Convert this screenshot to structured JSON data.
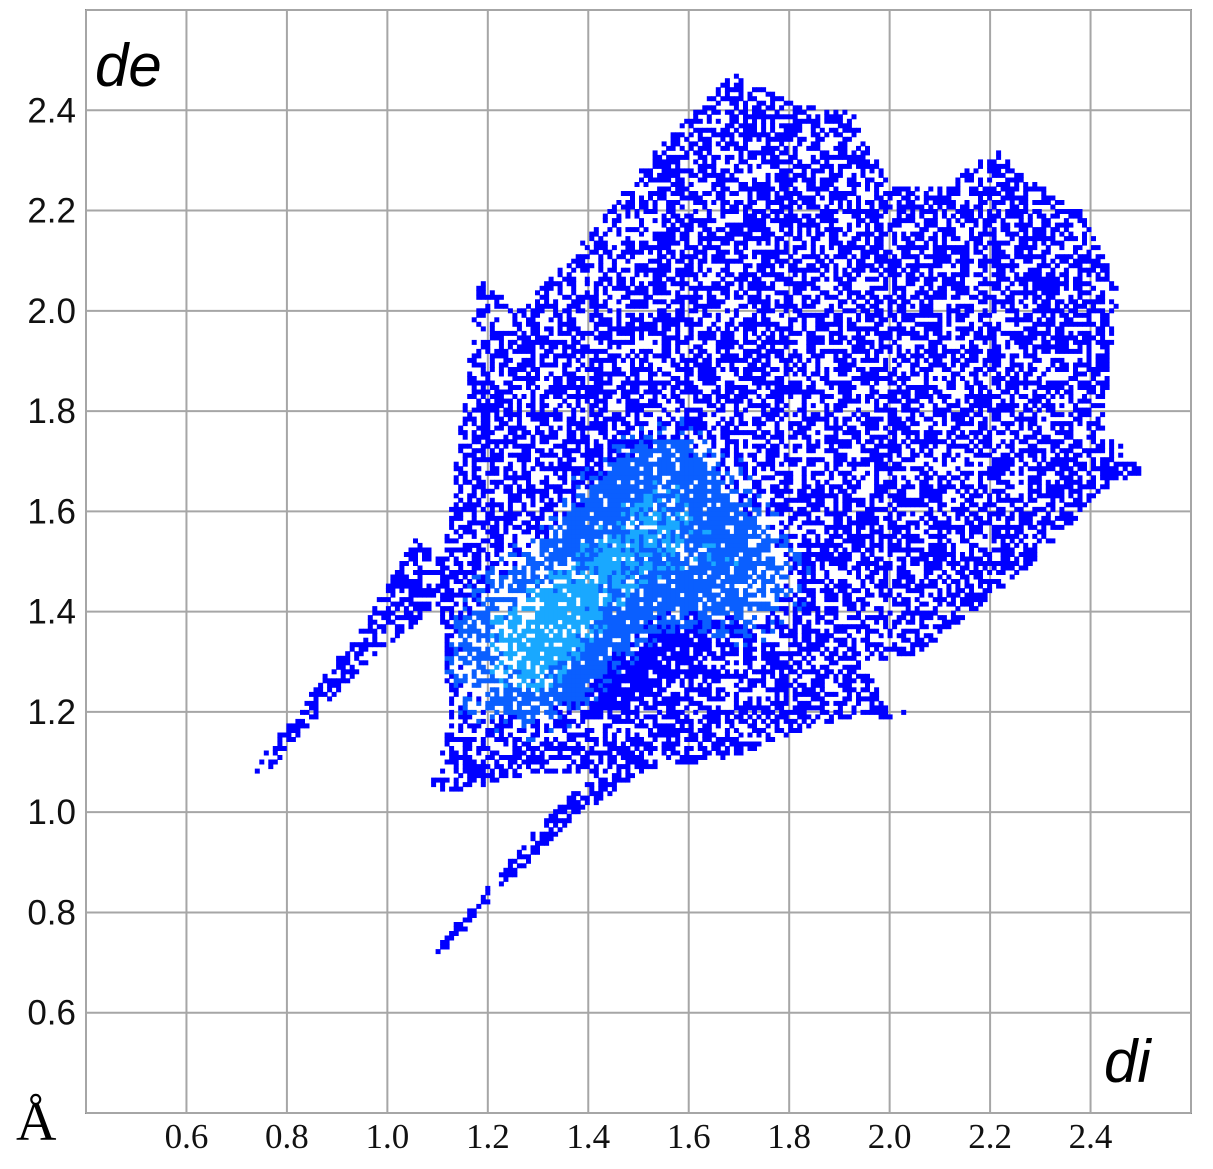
{
  "chart_data": {
    "type": "heatmap",
    "title": "",
    "xlabel": "di",
    "ylabel": "de",
    "unit_label": "Å",
    "xlim": [
      0.4,
      2.6
    ],
    "ylim": [
      0.4,
      2.6
    ],
    "x_ticks": [
      "0.6",
      "0.8",
      "1.0",
      "1.2",
      "1.4",
      "1.6",
      "1.8",
      "2.0",
      "2.2",
      "2.4"
    ],
    "y_ticks": [
      "0.6",
      "0.8",
      "1.0",
      "1.2",
      "1.4",
      "1.6",
      "1.8",
      "2.0",
      "2.2",
      "2.4"
    ],
    "grid": true,
    "colormap": [
      "#0000ff",
      "#0a5fff",
      "#19a8ff",
      "#21e6e6",
      "#40ff90"
    ],
    "regions": [
      {
        "name": "",
        "polygon": [
          [
            1.08,
            1.05
          ],
          [
            1.12,
            1.18
          ],
          [
            1.1,
            1.45
          ],
          [
            1.15,
            1.85
          ],
          [
            1.18,
            2.08
          ],
          [
            1.25,
            2.0
          ],
          [
            1.35,
            2.1
          ],
          [
            1.45,
            2.22
          ],
          [
            1.55,
            2.35
          ],
          [
            1.68,
            2.48
          ],
          [
            1.8,
            2.42
          ],
          [
            1.92,
            2.4
          ],
          [
            2.0,
            2.25
          ],
          [
            2.1,
            2.25
          ],
          [
            2.2,
            2.33
          ],
          [
            2.3,
            2.25
          ],
          [
            2.38,
            2.2
          ],
          [
            2.45,
            2.05
          ],
          [
            2.42,
            1.78
          ],
          [
            2.5,
            1.68
          ],
          [
            2.42,
            1.65
          ],
          [
            2.3,
            1.52
          ],
          [
            2.18,
            1.42
          ],
          [
            2.05,
            1.32
          ],
          [
            1.95,
            1.3
          ],
          [
            1.98,
            1.22
          ],
          [
            2.05,
            1.2
          ],
          [
            1.85,
            1.18
          ],
          [
            1.7,
            1.12
          ],
          [
            1.58,
            1.1
          ],
          [
            1.4,
            1.08
          ],
          [
            1.28,
            1.08
          ],
          [
            1.15,
            1.05
          ]
        ],
        "density": 0.55
      },
      {
        "name": "",
        "polygon": [
          [
            1.25,
            1.25
          ],
          [
            1.35,
            1.58
          ],
          [
            1.45,
            1.75
          ],
          [
            1.58,
            1.75
          ],
          [
            1.72,
            1.6
          ],
          [
            1.7,
            1.4
          ],
          [
            1.55,
            1.25
          ],
          [
            1.4,
            1.2
          ]
        ],
        "density": 0.85
      },
      {
        "name": "",
        "polygon": [
          [
            0.72,
            1.08
          ],
          [
            0.76,
            1.09
          ],
          [
            0.95,
            1.3
          ],
          [
            1.1,
            1.42
          ],
          [
            1.12,
            1.5
          ],
          [
            1.05,
            1.55
          ],
          [
            0.95,
            1.38
          ]
        ],
        "density": 0.6
      },
      {
        "name": "",
        "polygon": [
          [
            1.08,
            0.72
          ],
          [
            1.11,
            0.73
          ],
          [
            1.35,
            0.98
          ],
          [
            1.55,
            1.12
          ],
          [
            1.6,
            1.2
          ],
          [
            1.48,
            1.15
          ],
          [
            1.3,
            0.98
          ]
        ],
        "density": 0.6
      }
    ],
    "hot_spots": [
      [
        1.44,
        1.5
      ],
      [
        1.32,
        1.38
      ],
      [
        1.55,
        1.65
      ],
      [
        1.7,
        1.48
      ],
      [
        1.25,
        1.3
      ]
    ]
  }
}
